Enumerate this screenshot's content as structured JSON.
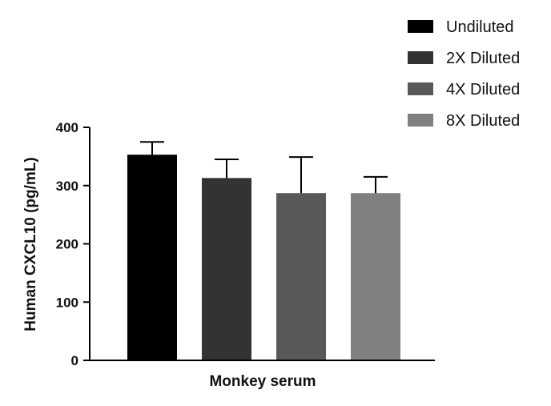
{
  "chart_data": {
    "type": "bar",
    "title": "",
    "xlabel": "Monkey serum",
    "ylabel": "Human CXCL10 (pg/mL)",
    "ylim": [
      0,
      400
    ],
    "yticks": [
      0,
      100,
      200,
      300,
      400
    ],
    "ytick_labels": [
      "0",
      "100",
      "200",
      "300",
      "400"
    ],
    "grid": false,
    "legend_position": "top-right",
    "series": [
      {
        "name": "Undiluted",
        "value": 353,
        "error": 22,
        "color": "#000000"
      },
      {
        "name": "2X Diluted",
        "value": 313,
        "error": 32,
        "color": "#333333"
      },
      {
        "name": "4X Diluted",
        "value": 287,
        "error": 62,
        "color": "#595959"
      },
      {
        "name": "8X Diluted",
        "value": 287,
        "error": 28,
        "color": "#808080"
      }
    ]
  }
}
